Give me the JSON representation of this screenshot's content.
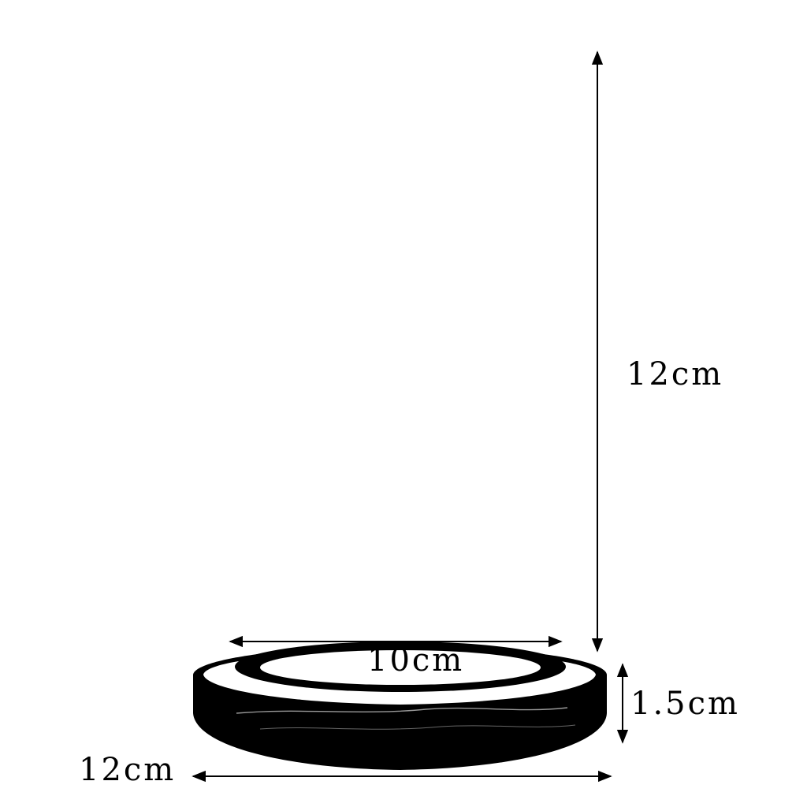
{
  "diagram": {
    "dimensions": {
      "height": "12cm",
      "inner_diameter": "10cm",
      "base_thickness": "1.5cm",
      "outer_diameter": "12cm"
    },
    "colors": {
      "ink": "#000000",
      "background": "#ffffff"
    }
  }
}
